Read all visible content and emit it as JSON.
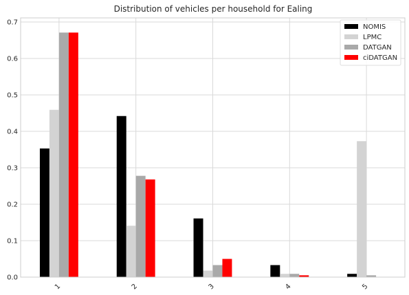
{
  "chart_data": {
    "type": "bar",
    "title": "Distribution of vehicles per household for Ealing",
    "xlabel": "",
    "ylabel": "",
    "categories": [
      "1",
      "2",
      "3",
      "4",
      "5"
    ],
    "series": [
      {
        "name": "NOMIS",
        "color": "#000000",
        "values": [
          0.353,
          0.442,
          0.161,
          0.033,
          0.009
        ]
      },
      {
        "name": "LPMC",
        "color": "#d3d3d3",
        "values": [
          0.459,
          0.141,
          0.018,
          0.009,
          0.373
        ]
      },
      {
        "name": "DATGAN",
        "color": "#a9a9a9",
        "values": [
          0.671,
          0.278,
          0.033,
          0.009,
          0.005
        ]
      },
      {
        "name": "ciDATGAN",
        "color": "#ff0000",
        "values": [
          0.671,
          0.268,
          0.05,
          0.005,
          0.0
        ]
      }
    ],
    "ylim": [
      0,
      0.7
    ],
    "yticks": [
      "0.0",
      "0.1",
      "0.2",
      "0.3",
      "0.4",
      "0.5",
      "0.6",
      "0.7"
    ],
    "grid": true,
    "legend_position": "top-right",
    "xtick_rotation": "45"
  }
}
